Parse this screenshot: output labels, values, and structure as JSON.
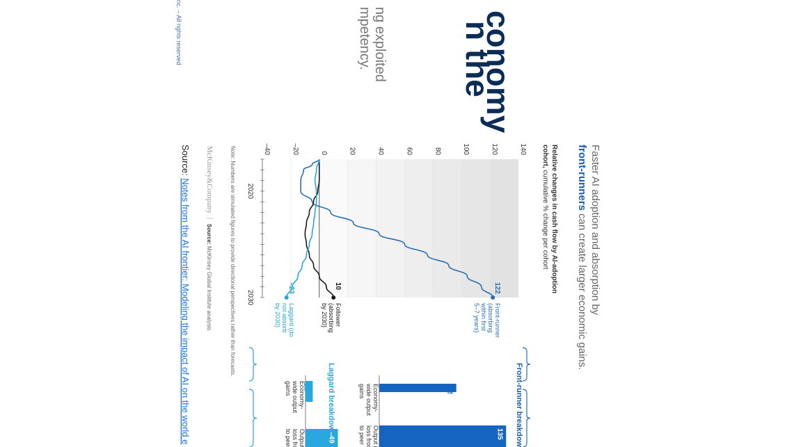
{
  "background": {
    "title_fragments": [
      "n the",
      "conomy"
    ],
    "subtitle_fragments": [
      "ng exploited",
      "mpetency."
    ],
    "copyright_fragment": "nc. – All rights reserved"
  },
  "headline": {
    "line1": "Faster AI adoption and absorption by",
    "line2_bold": "front-runners",
    "line2_rest": " can create larger economic gains."
  },
  "chart_title": {
    "bold": "Relative changes in cash flow by AI-adoption",
    "line2_bold": "cohort,",
    "line2_rest": " cumulative % change per cohort"
  },
  "chart_data": {
    "type": "line",
    "x_ticks": [
      "2020",
      "2030"
    ],
    "xlim": [
      2017,
      2030
    ],
    "ylim": [
      -40,
      140
    ],
    "y_ticks": [
      -40,
      -20,
      0,
      20,
      40,
      60,
      80,
      100,
      120,
      140
    ],
    "grid": true,
    "series": [
      {
        "name": "Front-runner (absorbing within first 5–7 years)",
        "label_lines": [
          "Front-runner",
          "(absorbing",
          "within first",
          "5–7 years)"
        ],
        "end_label": "122",
        "color": "#2a6fb0",
        "points": [
          [
            2017,
            0
          ],
          [
            2017.5,
            -5
          ],
          [
            2018,
            -11
          ],
          [
            2019,
            -13
          ],
          [
            2020,
            -13
          ],
          [
            2021,
            -5
          ],
          [
            2022,
            8
          ],
          [
            2023,
            24
          ],
          [
            2024,
            42
          ],
          [
            2025,
            60
          ],
          [
            2026,
            76
          ],
          [
            2027,
            91
          ],
          [
            2028,
            104
          ],
          [
            2029,
            114
          ],
          [
            2030,
            122
          ]
        ]
      },
      {
        "name": "Follower (absorbing by 2030)",
        "label_lines": [
          "Follower",
          "(absorbing",
          "by 2030)"
        ],
        "end_label": "10",
        "color": "#1a1a1a",
        "points": [
          [
            2017,
            0
          ],
          [
            2018,
            0
          ],
          [
            2019,
            0
          ],
          [
            2020,
            -1
          ],
          [
            2021,
            -4
          ],
          [
            2022,
            -7
          ],
          [
            2023,
            -9
          ],
          [
            2024,
            -10
          ],
          [
            2025,
            -9
          ],
          [
            2026,
            -7
          ],
          [
            2027,
            -4
          ],
          [
            2028,
            0
          ],
          [
            2029,
            5
          ],
          [
            2030,
            10
          ]
        ]
      },
      {
        "name": "Laggard (do not absorb by 2030)",
        "label_lines": [
          "Laggard (do",
          "not absorb",
          "by 2030)"
        ],
        "end_label": "–23",
        "color": "#2aa3d8",
        "points": [
          [
            2017,
            0
          ],
          [
            2018,
            -2
          ],
          [
            2019,
            -3
          ],
          [
            2020,
            -2
          ],
          [
            2021,
            -2
          ],
          [
            2022,
            -3
          ],
          [
            2023,
            -4
          ],
          [
            2024,
            -5
          ],
          [
            2025,
            -7
          ],
          [
            2026,
            -9
          ],
          [
            2027,
            -12
          ],
          [
            2028,
            -15
          ],
          [
            2029,
            -19
          ],
          [
            2030,
            -23
          ]
        ]
      }
    ]
  },
  "breakdowns": {
    "front_runner": {
      "title": "Front-runner breakdow",
      "bars": [
        {
          "label_lines": [
            "Economy-",
            "wide output",
            "gains"
          ],
          "value": 82,
          "value_label": "82",
          "color": "#1565c0"
        },
        {
          "label_lines": [
            "Output g",
            "loss from",
            "to peer"
          ],
          "value": 135,
          "value_label": "135",
          "color": "#1565c0"
        }
      ]
    },
    "laggard": {
      "title": "Laggard breakdown, %",
      "bars": [
        {
          "label_lines": [
            "Economy-",
            "wide output",
            "gains"
          ],
          "value": 11,
          "value_label": "11",
          "color": "#29a8e0"
        },
        {
          "label_lines": [
            "Output g",
            "loss from",
            "to peer"
          ],
          "value": -49,
          "value_label": "–49",
          "color": "#29a8e0"
        }
      ]
    }
  },
  "note": "Note: Numbers are simulated figures to provide directional perspectives rather than forecasts.",
  "logo": "McKinsey&Company",
  "source_small": {
    "bold": "Source:",
    "rest": " McKinsey Global Institute analysis"
  },
  "source_footer": {
    "label": "Source: ",
    "link": "Notes from the AI frontier: Modeling the impact of AI on the world e"
  }
}
